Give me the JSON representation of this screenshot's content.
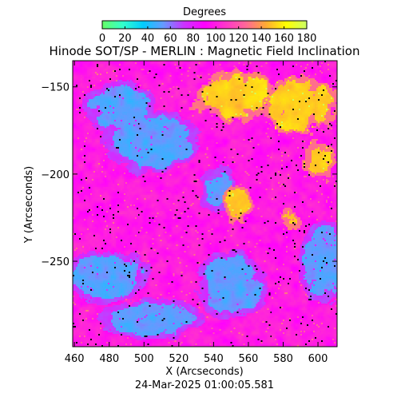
{
  "chart_data": {
    "type": "heatmap",
    "title": "Hinode SOT/SP - MERLIN : Magnetic Field Inclination",
    "xlabel": "X (Arcseconds)",
    "ylabel": "Y (Arcseconds)",
    "xlim": [
      459,
      611
    ],
    "ylim": [
      -299,
      -135
    ],
    "x_ticks": [
      460,
      480,
      500,
      520,
      540,
      560,
      580,
      600
    ],
    "y_ticks": [
      -150,
      -200,
      -250
    ],
    "timestamp": "24-Mar-2025 01:00:05.581",
    "colorbar": {
      "label": "Degrees",
      "range": [
        0,
        180
      ],
      "ticks": [
        0,
        20,
        40,
        60,
        80,
        100,
        120,
        140,
        160,
        180
      ],
      "colors": [
        "#66ff66",
        "#33ffcc",
        "#00ccff",
        "#6699ff",
        "#cc33ff",
        "#ff00ff",
        "#ff33cc",
        "#ff6699",
        "#ffaa33",
        "#ffff00",
        "#ccff66"
      ]
    },
    "values": "Inclination map (degrees): dominant ~90-110 (magenta), cyan/blue (~40-60) network lanes in upper-left and lower-left, yellow/orange (~140-160) patches upper-right and centre-right"
  }
}
